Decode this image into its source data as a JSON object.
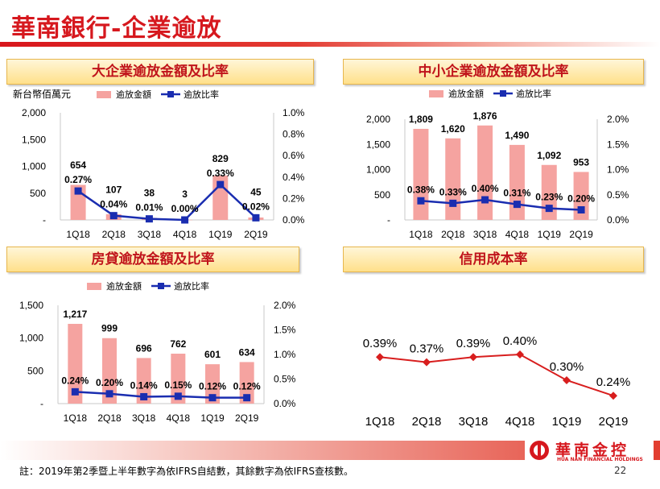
{
  "page": {
    "title": "華南銀行-企業逾放",
    "unit": "新台幣佰萬元",
    "footnote": "註：2019年第2季暨上半年數字為依IFRS自結數，其餘數字為依IFRS查核數。",
    "page_number": "22"
  },
  "logo": {
    "text": "華南金控",
    "subtext": "HUA NAN FINANCIAL HOLDINGS"
  },
  "colors": {
    "bar": "#f5a3a0",
    "line": "#1a2db0",
    "title": "#d6181e",
    "credit": "#d81e1e"
  },
  "chart_data": [
    {
      "type": "bar",
      "title": "大企業逾放金額及比率",
      "categories": [
        "1Q18",
        "2Q18",
        "3Q18",
        "4Q18",
        "1Q19",
        "2Q19"
      ],
      "legend": {
        "bar": "逾放金額",
        "line": "逾放比率"
      },
      "series": [
        {
          "name": "逾放金額",
          "type": "bar",
          "values": [
            654,
            107,
            38,
            3,
            829,
            45
          ],
          "labels": [
            "654",
            "107",
            "38",
            "3",
            "829",
            "45"
          ]
        },
        {
          "name": "逾放比率",
          "type": "line",
          "values": [
            0.27,
            0.04,
            0.01,
            0.0,
            0.33,
            0.02
          ],
          "labels": [
            "0.27%",
            "0.04%",
            "0.01%",
            "0.00%",
            "0.33%",
            "0.02%"
          ]
        }
      ],
      "y_left": {
        "range": [
          0,
          2000
        ],
        "ticks": [
          "-",
          "500",
          "1,000",
          "1,500",
          "2,000"
        ]
      },
      "y_right": {
        "range": [
          0,
          1.0
        ],
        "ticks": [
          "0.0%",
          "0.2%",
          "0.4%",
          "0.6%",
          "0.8%",
          "1.0%"
        ]
      },
      "grid": false
    },
    {
      "type": "bar",
      "title": "中小企業逾放金額及比率",
      "categories": [
        "1Q18",
        "2Q18",
        "3Q18",
        "4Q18",
        "1Q19",
        "2Q19"
      ],
      "legend": {
        "bar": "逾放金額",
        "line": "逾放比率"
      },
      "series": [
        {
          "name": "逾放金額",
          "type": "bar",
          "values": [
            1809,
            1620,
            1876,
            1490,
            1092,
            953
          ],
          "labels": [
            "1,809",
            "1,620",
            "1,876",
            "1,490",
            "1,092",
            "953"
          ]
        },
        {
          "name": "逾放比率",
          "type": "line",
          "values": [
            0.38,
            0.33,
            0.4,
            0.31,
            0.23,
            0.2
          ],
          "labels": [
            "0.38%",
            "0.33%",
            "0.40%",
            "0.31%",
            "0.23%",
            "0.20%"
          ]
        }
      ],
      "y_left": {
        "range": [
          0,
          2000
        ],
        "ticks": [
          "-",
          "500",
          "1,000",
          "1,500",
          "2,000"
        ]
      },
      "y_right": {
        "range": [
          0,
          2.0
        ],
        "ticks": [
          "0.0%",
          "0.5%",
          "1.0%",
          "1.5%",
          "2.0%"
        ]
      },
      "grid": false
    },
    {
      "type": "bar",
      "title": "房貸逾放金額及比率",
      "categories": [
        "1Q18",
        "2Q18",
        "3Q18",
        "4Q18",
        "1Q19",
        "2Q19"
      ],
      "legend": {
        "bar": "逾放金額",
        "line": "逾放比率"
      },
      "series": [
        {
          "name": "逾放金額",
          "type": "bar",
          "values": [
            1217,
            999,
            696,
            762,
            601,
            634
          ],
          "labels": [
            "1,217",
            "999",
            "696",
            "762",
            "601",
            "634"
          ]
        },
        {
          "name": "逾放比率",
          "type": "line",
          "values": [
            0.24,
            0.2,
            0.14,
            0.15,
            0.12,
            0.12
          ],
          "labels": [
            "0.24%",
            "0.20%",
            "0.14%",
            "0.15%",
            "0.12%",
            "0.12%"
          ]
        }
      ],
      "y_left": {
        "range": [
          0,
          1500
        ],
        "ticks": [
          "-",
          "500",
          "1,000",
          "1,500"
        ]
      },
      "y_right": {
        "range": [
          0,
          2.0
        ],
        "ticks": [
          "0.0%",
          "0.5%",
          "1.0%",
          "1.5%",
          "2.0%"
        ]
      },
      "grid": false
    },
    {
      "type": "line",
      "title": "信用成本率",
      "categories": [
        "1Q18",
        "2Q18",
        "3Q18",
        "4Q18",
        "1Q19",
        "2Q19"
      ],
      "series": [
        {
          "type": "line",
          "values": [
            0.39,
            0.37,
            0.39,
            0.4,
            0.3,
            0.24
          ],
          "labels": [
            "0.39%",
            "0.37%",
            "0.39%",
            "0.40%",
            "0.30%",
            "0.24%"
          ]
        }
      ],
      "grid": false
    }
  ]
}
